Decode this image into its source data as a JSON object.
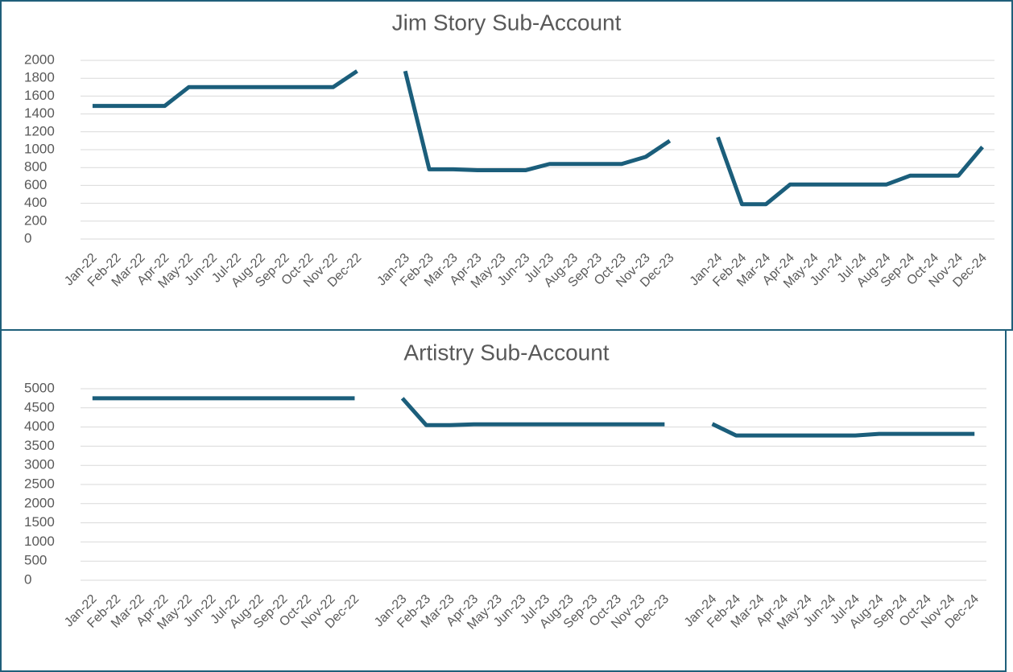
{
  "chart_data": [
    {
      "type": "line",
      "title": "Jim Story Sub-Account",
      "categories": [
        "Jan-22",
        "Feb-22",
        "Mar-22",
        "Apr-22",
        "May-22",
        "Jun-22",
        "Jul-22",
        "Aug-22",
        "Sep-22",
        "Oct-22",
        "Nov-22",
        "Dec-22",
        null,
        "Jan-23",
        "Feb-23",
        "Mar-23",
        "Apr-23",
        "May-23",
        "Jun-23",
        "Jul-23",
        "Aug-23",
        "Sep-23",
        "Oct-23",
        "Nov-23",
        "Dec-23",
        null,
        "Jan-24",
        "Feb-24",
        "Mar-24",
        "Apr-24",
        "May-24",
        "Jun-24",
        "Jul-24",
        "Aug-24",
        "Sep-24",
        "Oct-24",
        "Nov-24",
        "Dec-24"
      ],
      "values": [
        1490,
        1490,
        1490,
        1490,
        1700,
        1700,
        1700,
        1700,
        1700,
        1700,
        1700,
        1880,
        null,
        1880,
        780,
        780,
        770,
        770,
        770,
        840,
        840,
        840,
        840,
        920,
        1100,
        null,
        1140,
        390,
        390,
        610,
        610,
        610,
        610,
        610,
        710,
        710,
        710,
        1030
      ],
      "color": "#1b5e7b",
      "ylim": [
        0,
        2000
      ],
      "yticks": [
        0,
        200,
        400,
        600,
        800,
        1000,
        1200,
        1400,
        1600,
        1800,
        2000
      ],
      "grid": true
    },
    {
      "type": "line",
      "title": "Artistry Sub-Account",
      "categories": [
        "Jan-22",
        "Feb-22",
        "Mar-22",
        "Apr-22",
        "May-22",
        "Jun-22",
        "Jul-22",
        "Aug-22",
        "Sep-22",
        "Oct-22",
        "Nov-22",
        "Dec-22",
        null,
        "Jan-23",
        "Feb-23",
        "Mar-23",
        "Apr-23",
        "May-23",
        "Jun-23",
        "Jul-23",
        "Aug-23",
        "Sep-23",
        "Oct-23",
        "Nov-23",
        "Dec-23",
        null,
        "Jan-24",
        "Feb-24",
        "Mar-24",
        "Apr-24",
        "May-24",
        "Jun-24",
        "Jul-24",
        "Aug-24",
        "Sep-24",
        "Oct-24",
        "Nov-24",
        "Dec-24"
      ],
      "values": [
        4750,
        4750,
        4750,
        4750,
        4750,
        4750,
        4750,
        4750,
        4750,
        4750,
        4750,
        4750,
        null,
        4750,
        4050,
        4050,
        4070,
        4070,
        4070,
        4070,
        4070,
        4070,
        4070,
        4070,
        4070,
        null,
        4080,
        3780,
        3780,
        3780,
        3780,
        3780,
        3780,
        3820,
        3820,
        3820,
        3820,
        3820
      ],
      "color": "#1b5e7b",
      "ylim": [
        0,
        5000
      ],
      "yticks": [
        0,
        500,
        1000,
        1500,
        2000,
        2500,
        3000,
        3500,
        4000,
        4500,
        5000
      ],
      "grid": true
    }
  ]
}
